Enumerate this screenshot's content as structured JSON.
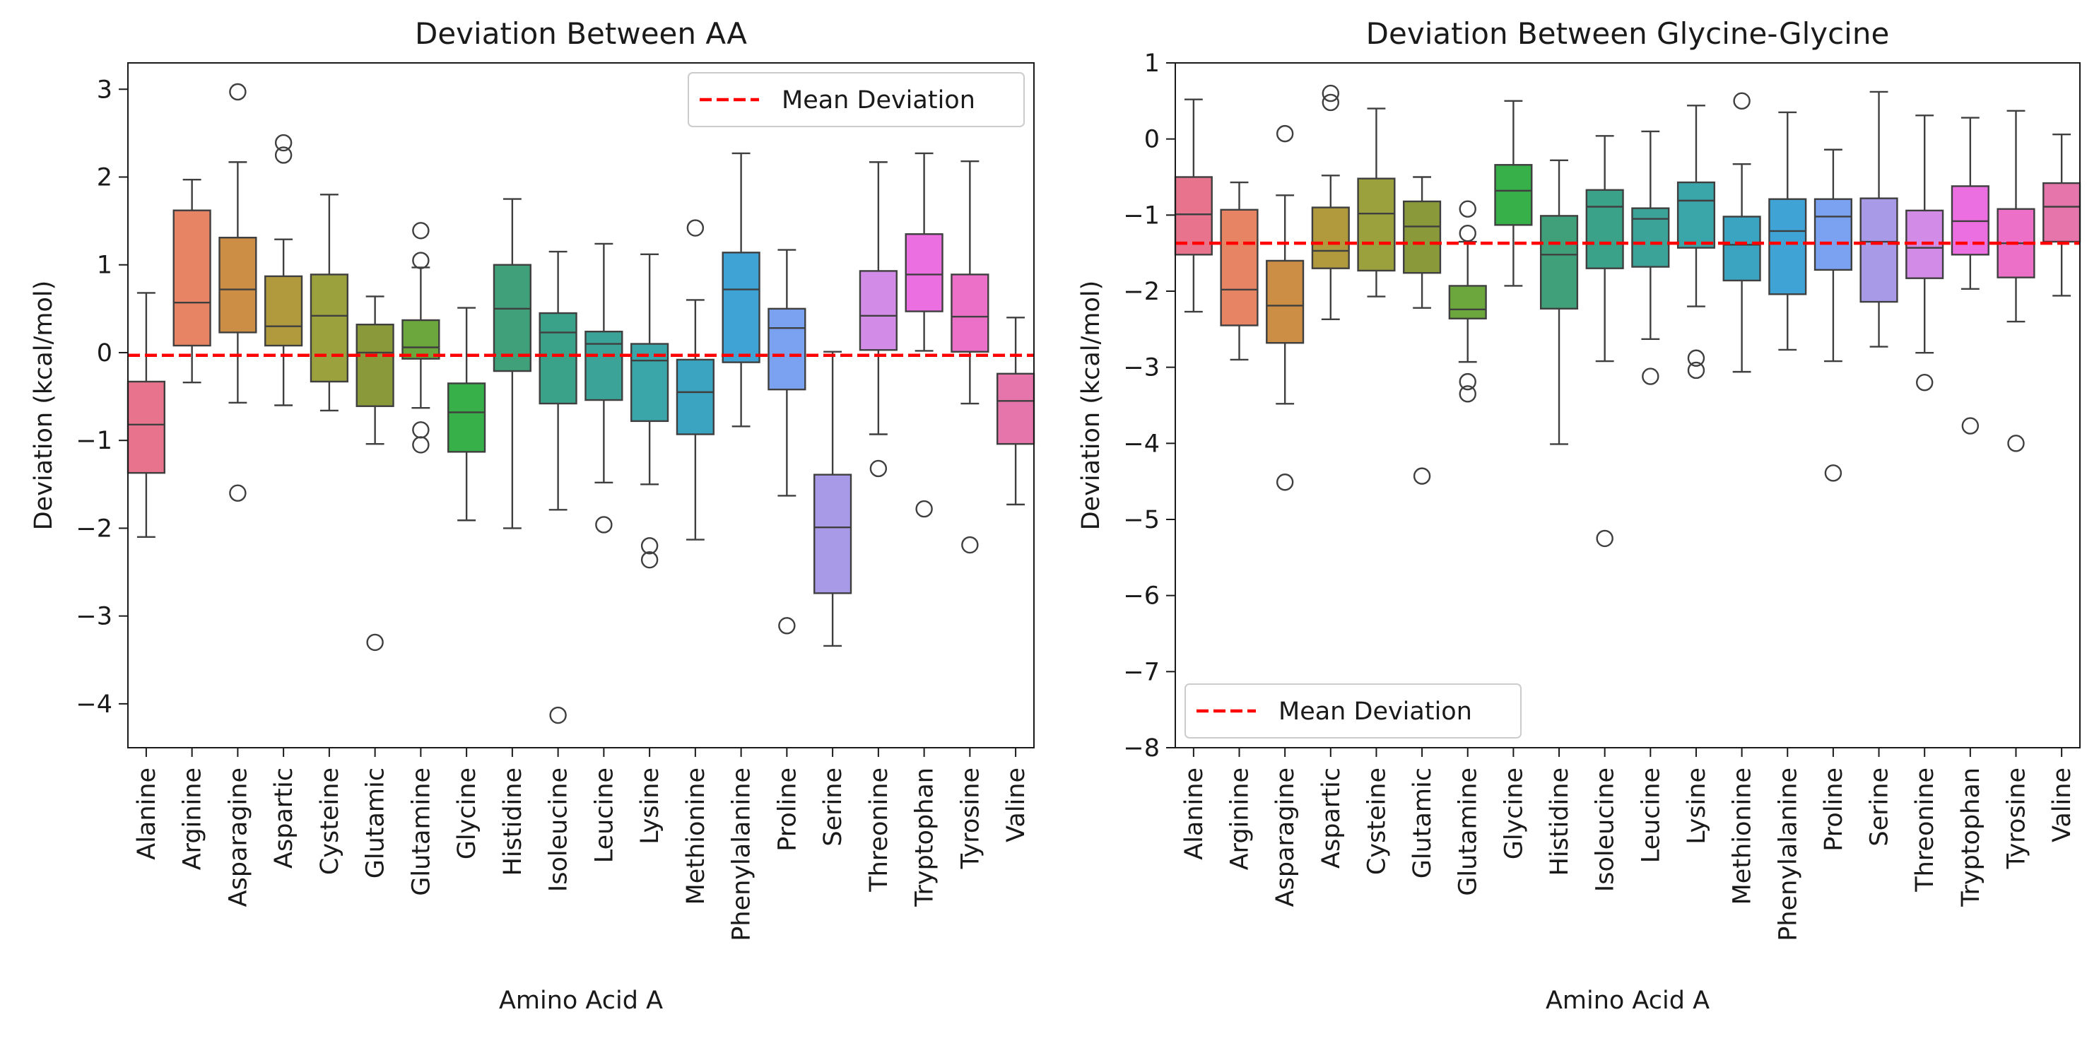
{
  "chart_data": [
    {
      "type": "box",
      "title": "Deviation Between AA",
      "xlabel": "Amino Acid A",
      "ylabel": "Deviation (kcal/mol)",
      "ylim": [
        -4.5,
        3.3
      ],
      "yticks": [
        -4,
        -3,
        -2,
        -1,
        0,
        1,
        2,
        3
      ],
      "grid": false,
      "mean_deviation": -0.03,
      "legend": {
        "label": "Mean Deviation",
        "location": "upper right"
      },
      "categories": [
        "Alanine",
        "Arginine",
        "Asparagine",
        "Aspartic",
        "Cysteine",
        "Glutamic",
        "Glutamine",
        "Glycine",
        "Histidine",
        "Isoleucine",
        "Leucine",
        "Lysine",
        "Methionine",
        "Phenylalanine",
        "Proline",
        "Serine",
        "Threonine",
        "Tryptophan",
        "Tyrosine",
        "Valine"
      ],
      "boxes": [
        {
          "whisker_low": -2.1,
          "q1": -1.37,
          "median": -0.82,
          "q3": -0.33,
          "whisker_high": 0.68,
          "outliers": []
        },
        {
          "whisker_low": -0.34,
          "q1": 0.08,
          "median": 0.57,
          "q3": 1.62,
          "whisker_high": 1.97,
          "outliers": []
        },
        {
          "whisker_low": -0.57,
          "q1": 0.23,
          "median": 0.72,
          "q3": 1.31,
          "whisker_high": 2.17,
          "outliers": [
            2.97,
            -1.6
          ]
        },
        {
          "whisker_low": -0.6,
          "q1": 0.08,
          "median": 0.3,
          "q3": 0.87,
          "whisker_high": 1.29,
          "outliers": [
            2.39,
            2.25
          ]
        },
        {
          "whisker_low": -0.66,
          "q1": -0.33,
          "median": 0.42,
          "q3": 0.89,
          "whisker_high": 1.8,
          "outliers": []
        },
        {
          "whisker_low": -1.04,
          "q1": -0.61,
          "median": 0.0,
          "q3": 0.32,
          "whisker_high": 0.64,
          "outliers": [
            -3.3
          ]
        },
        {
          "whisker_low": -0.63,
          "q1": -0.07,
          "median": 0.06,
          "q3": 0.37,
          "whisker_high": 0.97,
          "outliers": [
            1.39,
            1.05,
            -0.88,
            -1.05
          ]
        },
        {
          "whisker_low": -1.91,
          "q1": -1.13,
          "median": -0.68,
          "q3": -0.35,
          "whisker_high": 0.51,
          "outliers": []
        },
        {
          "whisker_low": -2.0,
          "q1": -0.21,
          "median": 0.5,
          "q3": 1.0,
          "whisker_high": 1.75,
          "outliers": []
        },
        {
          "whisker_low": -1.79,
          "q1": -0.58,
          "median": 0.23,
          "q3": 0.45,
          "whisker_high": 1.15,
          "outliers": [
            -4.13
          ]
        },
        {
          "whisker_low": -1.48,
          "q1": -0.54,
          "median": 0.1,
          "q3": 0.24,
          "whisker_high": 1.24,
          "outliers": [
            -1.96
          ]
        },
        {
          "whisker_low": -1.5,
          "q1": -0.78,
          "median": -0.09,
          "q3": 0.1,
          "whisker_high": 1.12,
          "outliers": [
            -2.2,
            -2.36
          ]
        },
        {
          "whisker_low": -2.13,
          "q1": -0.93,
          "median": -0.45,
          "q3": -0.08,
          "whisker_high": 0.6,
          "outliers": [
            1.42
          ]
        },
        {
          "whisker_low": -0.84,
          "q1": -0.11,
          "median": 0.72,
          "q3": 1.14,
          "whisker_high": 2.27,
          "outliers": []
        },
        {
          "whisker_low": -1.63,
          "q1": -0.42,
          "median": 0.28,
          "q3": 0.5,
          "whisker_high": 1.17,
          "outliers": [
            -3.11
          ]
        },
        {
          "whisker_low": -3.34,
          "q1": -2.74,
          "median": -1.99,
          "q3": -1.39,
          "whisker_high": 0.01,
          "outliers": []
        },
        {
          "whisker_low": -0.93,
          "q1": 0.03,
          "median": 0.42,
          "q3": 0.93,
          "whisker_high": 2.17,
          "outliers": [
            -1.32
          ]
        },
        {
          "whisker_low": 0.02,
          "q1": 0.47,
          "median": 0.89,
          "q3": 1.35,
          "whisker_high": 2.27,
          "outliers": [
            -1.78
          ]
        },
        {
          "whisker_low": -0.58,
          "q1": 0.01,
          "median": 0.41,
          "q3": 0.89,
          "whisker_high": 2.18,
          "outliers": [
            -2.19
          ]
        },
        {
          "whisker_low": -1.73,
          "q1": -1.04,
          "median": -0.55,
          "q3": -0.24,
          "whisker_high": 0.4,
          "outliers": []
        }
      ]
    },
    {
      "type": "box",
      "title": "Deviation Between Glycine-Glycine",
      "xlabel": "Amino Acid A",
      "ylabel": "Deviation (kcal/mol)",
      "ylim": [
        -8,
        1
      ],
      "yticks": [
        -8,
        -7,
        -6,
        -5,
        -4,
        -3,
        -2,
        -1,
        0,
        1
      ],
      "grid": false,
      "mean_deviation": -1.37,
      "legend": {
        "label": "Mean Deviation",
        "location": "lower left"
      },
      "categories": [
        "Alanine",
        "Arginine",
        "Asparagine",
        "Aspartic",
        "Cysteine",
        "Glutamic",
        "Glutamine",
        "Glycine",
        "Histidine",
        "Isoleucine",
        "Leucine",
        "Lysine",
        "Methionine",
        "Phenylalanine",
        "Proline",
        "Serine",
        "Threonine",
        "Tryptophan",
        "Tyrosine",
        "Valine"
      ],
      "boxes": [
        {
          "whisker_low": -2.27,
          "q1": -1.52,
          "median": -0.99,
          "q3": -0.5,
          "whisker_high": 0.52,
          "outliers": []
        },
        {
          "whisker_low": -2.9,
          "q1": -2.45,
          "median": -1.98,
          "q3": -0.93,
          "whisker_high": -0.57,
          "outliers": []
        },
        {
          "whisker_low": -3.48,
          "q1": -2.68,
          "median": -2.19,
          "q3": -1.6,
          "whisker_high": -0.74,
          "outliers": [
            0.07,
            -4.51
          ]
        },
        {
          "whisker_low": -2.37,
          "q1": -1.7,
          "median": -1.47,
          "q3": -0.9,
          "whisker_high": -0.48,
          "outliers": [
            0.6,
            0.48
          ]
        },
        {
          "whisker_low": -2.07,
          "q1": -1.73,
          "median": -0.98,
          "q3": -0.52,
          "whisker_high": 0.4,
          "outliers": []
        },
        {
          "whisker_low": -2.22,
          "q1": -1.76,
          "median": -1.15,
          "q3": -0.82,
          "whisker_high": -0.5,
          "outliers": [
            -4.43
          ]
        },
        {
          "whisker_low": -2.93,
          "q1": -2.36,
          "median": -2.24,
          "q3": -1.93,
          "whisker_high": -1.35,
          "outliers": [
            -0.92,
            -1.24,
            -3.19,
            -3.35
          ]
        },
        {
          "whisker_low": -1.93,
          "q1": -1.13,
          "median": -0.68,
          "q3": -0.34,
          "whisker_high": 0.5,
          "outliers": []
        },
        {
          "whisker_low": -4.01,
          "q1": -2.23,
          "median": -1.52,
          "q3": -1.01,
          "whisker_high": -0.28,
          "outliers": []
        },
        {
          "whisker_low": -2.92,
          "q1": -1.7,
          "median": -0.89,
          "q3": -0.67,
          "whisker_high": 0.04,
          "outliers": [
            -5.25
          ]
        },
        {
          "whisker_low": -2.63,
          "q1": -1.68,
          "median": -1.05,
          "q3": -0.91,
          "whisker_high": 0.1,
          "outliers": [
            -3.12
          ]
        },
        {
          "whisker_low": -2.2,
          "q1": -1.43,
          "median": -0.81,
          "q3": -0.57,
          "whisker_high": 0.44,
          "outliers": [
            -2.88,
            -3.04
          ]
        },
        {
          "whisker_low": -3.06,
          "q1": -1.86,
          "median": -1.39,
          "q3": -1.02,
          "whisker_high": -0.33,
          "outliers": [
            0.5
          ]
        },
        {
          "whisker_low": -2.77,
          "q1": -2.04,
          "median": -1.21,
          "q3": -0.79,
          "whisker_high": 0.35,
          "outliers": []
        },
        {
          "whisker_low": -2.92,
          "q1": -1.72,
          "median": -1.02,
          "q3": -0.79,
          "whisker_high": -0.14,
          "outliers": [
            -4.39
          ]
        },
        {
          "whisker_low": -2.73,
          "q1": -2.14,
          "median": -1.35,
          "q3": -0.78,
          "whisker_high": 0.62,
          "outliers": []
        },
        {
          "whisker_low": -2.81,
          "q1": -1.83,
          "median": -1.43,
          "q3": -0.94,
          "whisker_high": 0.31,
          "outliers": [
            -3.2
          ]
        },
        {
          "whisker_low": -1.97,
          "q1": -1.52,
          "median": -1.08,
          "q3": -0.62,
          "whisker_high": 0.28,
          "outliers": [
            -3.77
          ]
        },
        {
          "whisker_low": -2.4,
          "q1": -1.82,
          "median": -1.37,
          "q3": -0.92,
          "whisker_high": 0.37,
          "outliers": [
            -4.0
          ]
        },
        {
          "whisker_low": -2.06,
          "q1": -1.35,
          "median": -0.89,
          "q3": -0.58,
          "whisker_high": 0.06,
          "outliers": []
        }
      ]
    }
  ],
  "colors": {
    "boxes": [
      "#e8738c",
      "#e68464",
      "#cc8d45",
      "#b19a3e",
      "#9ba13c",
      "#8a9a3a",
      "#6ba73c",
      "#38b04a",
      "#3fa079",
      "#3aa289",
      "#3ca399",
      "#3ba6aa",
      "#3ba4c0",
      "#3fa3d6",
      "#7aa2f0",
      "#a99ae8",
      "#d28ce7",
      "#ec6fe2",
      "#ec70c7",
      "#e575aa"
    ],
    "mean_line": "#ff0000",
    "box_edge": "#3f3f3f",
    "axis": "#1a1a1a"
  }
}
